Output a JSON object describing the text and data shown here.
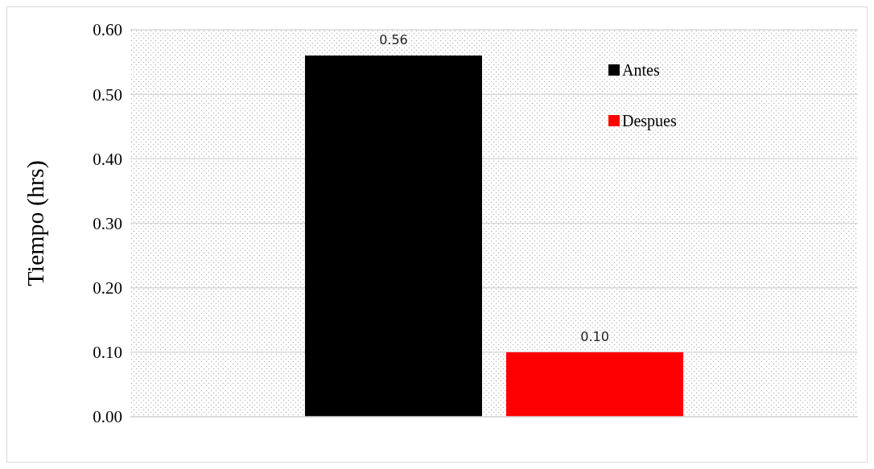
{
  "chart_data": {
    "type": "bar",
    "ylabel": "Tiempo (hrs)",
    "categories": [
      null
    ],
    "series": [
      {
        "name": "Antes",
        "color": "#000000",
        "values": [
          0.56
        ],
        "value_labels": [
          "0.56"
        ]
      },
      {
        "name": "Despues",
        "color": "#ff0000",
        "values": [
          0.1
        ],
        "value_labels": [
          "0.10"
        ]
      }
    ],
    "ylim": [
      0,
      0.6
    ],
    "yticks": [
      {
        "value": 0,
        "label": "0.00"
      },
      {
        "value": 0.1,
        "label": "0.10"
      },
      {
        "value": 0.2,
        "label": "0.20"
      },
      {
        "value": 0.3,
        "label": "0.30"
      },
      {
        "value": 0.4,
        "label": "0.40"
      },
      {
        "value": 0.5,
        "label": "0.50"
      },
      {
        "value": 0.6,
        "label": "0.60"
      }
    ],
    "grid": "y",
    "legend": "top right"
  }
}
